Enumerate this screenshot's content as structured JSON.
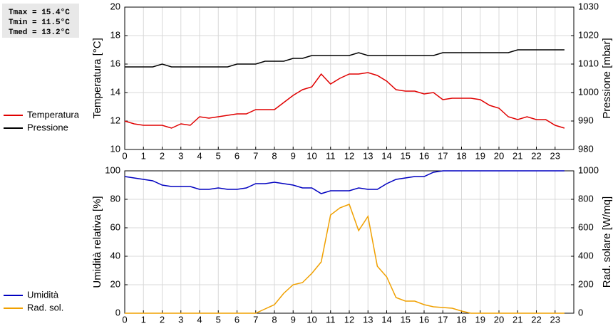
{
  "chart_data": [
    {
      "type": "line",
      "annotations": [
        "Tmax = 15.4°C",
        "Tmin = 11.5°C",
        "Tmed = 13.2°C"
      ],
      "y_label": "Temperatura [°C]",
      "y2_label": "Pressione [mbar]",
      "x": [
        0,
        0.5,
        1,
        1.5,
        2,
        2.5,
        3,
        3.5,
        4,
        4.5,
        5,
        5.5,
        6,
        6.5,
        7,
        7.5,
        8,
        8.5,
        9,
        9.5,
        10,
        10.5,
        11,
        11.5,
        12,
        12.5,
        13,
        13.5,
        14,
        14.5,
        15,
        15.5,
        16,
        16.5,
        17,
        17.5,
        18,
        18.5,
        19,
        19.5,
        20,
        20.5,
        21,
        21.5,
        22,
        22.5,
        23,
        23.5
      ],
      "xlim": [
        0,
        24
      ],
      "xticks": [
        0,
        1,
        2,
        3,
        4,
        5,
        6,
        7,
        8,
        9,
        10,
        11,
        12,
        13,
        14,
        15,
        16,
        17,
        18,
        19,
        20,
        21,
        22,
        23
      ],
      "ylim": [
        10,
        20
      ],
      "yticks": [
        10,
        12,
        14,
        16,
        18,
        20
      ],
      "y2lim": [
        980,
        1030
      ],
      "y2ticks": [
        980,
        990,
        1000,
        1010,
        1020,
        1030
      ],
      "grid": true,
      "legend": "left",
      "series": [
        {
          "name": "Temperatura",
          "color": "#e00000",
          "values": [
            12.0,
            11.8,
            11.7,
            11.7,
            11.7,
            11.5,
            11.8,
            11.7,
            12.3,
            12.2,
            12.3,
            12.4,
            12.5,
            12.5,
            12.8,
            12.8,
            12.8,
            13.3,
            13.8,
            14.2,
            14.4,
            15.3,
            14.6,
            15.0,
            15.3,
            15.3,
            15.4,
            15.2,
            14.8,
            14.2,
            14.1,
            14.1,
            13.9,
            14.0,
            13.5,
            13.6,
            13.6,
            13.6,
            13.5,
            13.1,
            12.9,
            12.3,
            12.1,
            12.3,
            12.1,
            12.1,
            11.7,
            11.5
          ]
        },
        {
          "name": "Pressione",
          "color": "#000000",
          "axis": "y2",
          "values": [
            1009,
            1009,
            1009,
            1009,
            1010,
            1009,
            1009,
            1009,
            1009,
            1009,
            1009,
            1009,
            1010,
            1010,
            1010,
            1011,
            1011,
            1011,
            1012,
            1012,
            1013,
            1013,
            1013,
            1013,
            1013,
            1014,
            1013,
            1013,
            1013,
            1013,
            1013,
            1013,
            1013,
            1013,
            1014,
            1014,
            1014,
            1014,
            1014,
            1014,
            1014,
            1014,
            1015,
            1015,
            1015,
            1015,
            1015,
            1015
          ]
        }
      ]
    },
    {
      "type": "line",
      "y_label": "Umidità relativa [%]",
      "y2_label": "Rad. solare [W/mq]",
      "x": [
        0,
        0.5,
        1,
        1.5,
        2,
        2.5,
        3,
        3.5,
        4,
        4.5,
        5,
        5.5,
        6,
        6.5,
        7,
        7.5,
        8,
        8.5,
        9,
        9.5,
        10,
        10.5,
        11,
        11.5,
        12,
        12.5,
        13,
        13.5,
        14,
        14.5,
        15,
        15.5,
        16,
        16.5,
        17,
        17.5,
        18,
        18.5,
        19,
        19.5,
        20,
        20.5,
        21,
        21.5,
        22,
        22.5,
        23,
        23.5
      ],
      "xlim": [
        0,
        24
      ],
      "xticks": [
        0,
        1,
        2,
        3,
        4,
        5,
        6,
        7,
        8,
        9,
        10,
        11,
        12,
        13,
        14,
        15,
        16,
        17,
        18,
        19,
        20,
        21,
        22,
        23
      ],
      "ylim": [
        0,
        100
      ],
      "yticks": [
        0,
        20,
        40,
        60,
        80,
        100
      ],
      "y2lim": [
        0,
        1000
      ],
      "y2ticks": [
        0,
        200,
        400,
        600,
        800,
        1000
      ],
      "grid": true,
      "legend": "left",
      "series": [
        {
          "name": "Umidità",
          "color": "#0000c0",
          "values": [
            96,
            95,
            94,
            93,
            90,
            89,
            89,
            89,
            87,
            87,
            88,
            87,
            87,
            88,
            91,
            91,
            92,
            91,
            90,
            88,
            88,
            84,
            86,
            86,
            86,
            88,
            87,
            87,
            91,
            94,
            95,
            96,
            96,
            99,
            100,
            100,
            100,
            100,
            100,
            100,
            100,
            100,
            100,
            100,
            100,
            100,
            100,
            100
          ]
        },
        {
          "name": "Rad. sol.",
          "color": "#f0a000",
          "axis": "y2",
          "values": [
            0,
            0,
            0,
            0,
            0,
            0,
            0,
            0,
            0,
            0,
            0,
            0,
            0,
            0,
            0,
            30,
            60,
            140,
            200,
            215,
            280,
            360,
            690,
            740,
            765,
            580,
            680,
            330,
            255,
            110,
            85,
            85,
            60,
            45,
            40,
            35,
            15,
            0,
            0,
            0,
            0,
            0,
            0,
            0,
            0,
            0,
            0,
            0
          ]
        }
      ]
    }
  ]
}
